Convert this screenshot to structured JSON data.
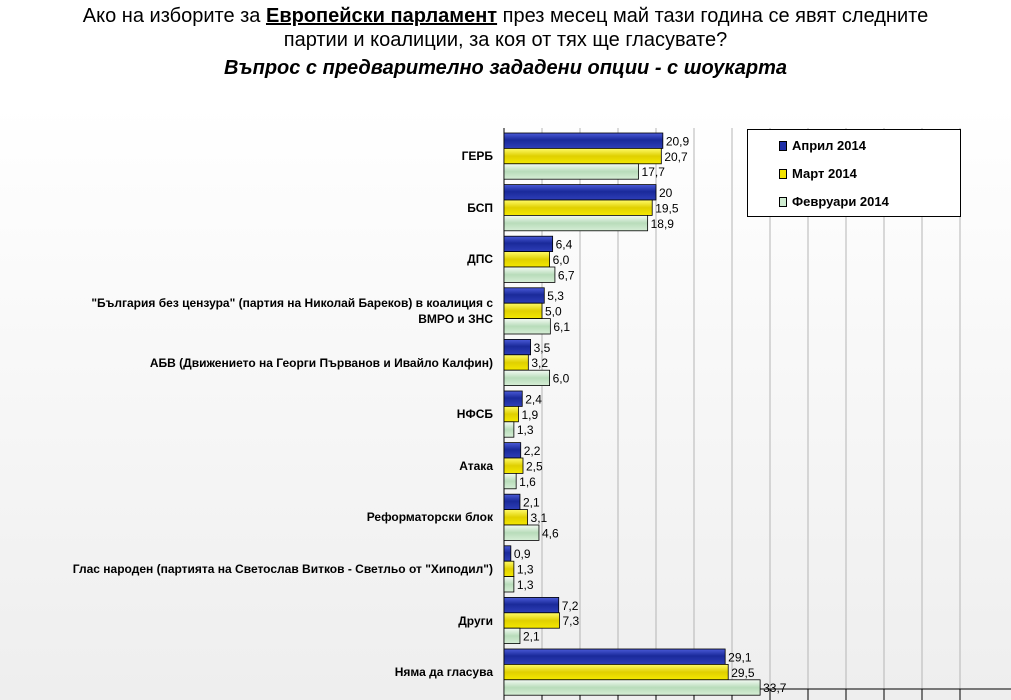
{
  "header": {
    "title_pre": "Ако на изборите за ",
    "title_hl": "Европейски парламент",
    "title_post1": " през месец май тази година се явят следните",
    "title_line2": "партии и коалиции, за коя от тях ще гласувате?",
    "subtitle": "Въпрос с предварително зададени опции - с шоукарта"
  },
  "legend_labels": [
    "Април 2014",
    "Март 2014",
    "Февруари 2014"
  ],
  "colors": {
    "april": "#1f2fa8",
    "march": "#f2e200",
    "february": "#cfecd0"
  },
  "chart_data": {
    "type": "bar",
    "orientation": "horizontal",
    "categories": [
      "ГЕРБ",
      "БСП",
      "ДПС",
      "\"България без цензура\" (партия на Николай Бареков) в коалиция с ВМРО и ЗНС",
      "АБВ (Движението на Георги Първанов и Ивайло Калфин)",
      "НФСБ",
      "Атака",
      "Реформаторски блок",
      "Глас народен (партията на Светослав Витков - Светльо от \"Хиподил\")",
      "Други",
      "Няма да гласува"
    ],
    "category_lines": [
      [
        "ГЕРБ"
      ],
      [
        "БСП"
      ],
      [
        "ДПС"
      ],
      [
        "\"България без цензура\" (партия на Николай Бареков) в коалиция с",
        "ВМРО и ЗНС"
      ],
      [
        "АБВ (Движението на Георги Първанов и Ивайло Калфин)"
      ],
      [
        "НФСБ"
      ],
      [
        "Атака"
      ],
      [
        "Реформаторски блок"
      ],
      [
        "Глас народен (партията на Светослав Витков - Светльо от \"Хиподил\")"
      ],
      [
        "Други"
      ],
      [
        "Няма да гласува"
      ]
    ],
    "series": [
      {
        "name": "Април 2014",
        "values": [
          20.9,
          20,
          6.4,
          5.3,
          3.5,
          2.4,
          2.2,
          2.1,
          0.9,
          7.2,
          29.1
        ],
        "labels": [
          "20,9",
          "20",
          "6,4",
          "5,3",
          "3,5",
          "2,4",
          "2,2",
          "2,1",
          "0,9",
          "7,2",
          "29,1"
        ]
      },
      {
        "name": "Март 2014",
        "values": [
          20.7,
          19.5,
          6.0,
          5.0,
          3.2,
          1.9,
          2.5,
          3.1,
          1.3,
          7.3,
          29.5
        ],
        "labels": [
          "20,7",
          "19,5",
          "6,0",
          "5,0",
          "3,2",
          "1,9",
          "2,5",
          "3,1",
          "1,3",
          "7,3",
          "29,5"
        ]
      },
      {
        "name": "Февруари 2014",
        "values": [
          17.7,
          18.9,
          6.7,
          6.1,
          6.0,
          1.3,
          1.6,
          4.6,
          1.3,
          2.1,
          33.7
        ],
        "labels": [
          "17,7",
          "18,9",
          "6,7",
          "6,1",
          "6,0",
          "1,3",
          "1,6",
          "4,6",
          "1,3",
          "2,1",
          "33,7"
        ]
      }
    ],
    "xlim": [
      0,
      60
    ],
    "grid": true,
    "legend_position": "top-right"
  }
}
